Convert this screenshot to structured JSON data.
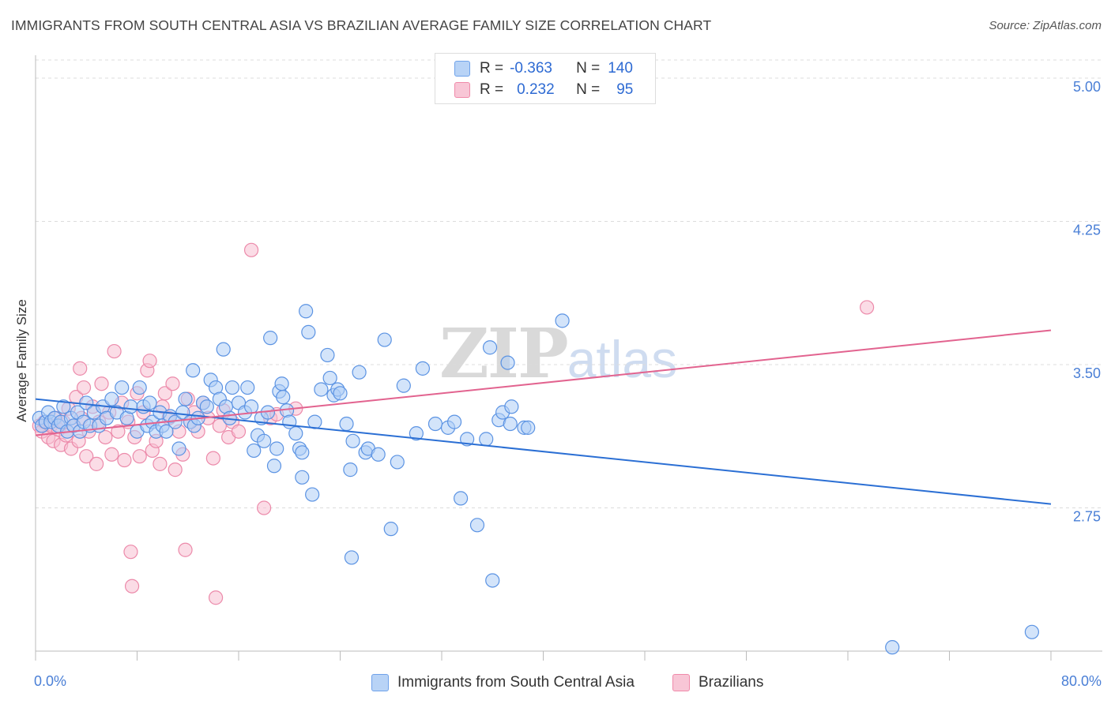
{
  "header": {
    "title": "IMMIGRANTS FROM SOUTH CENTRAL ASIA VS BRAZILIAN AVERAGE FAMILY SIZE CORRELATION CHART",
    "source": "Source: ZipAtlas.com"
  },
  "watermark": {
    "zip": "ZIP",
    "atlas": "atlas"
  },
  "legend_stats": [
    {
      "r_label": "R =",
      "r_value": "-0.363",
      "n_label": "N =",
      "n_value": "140",
      "color": "#6fa2ea"
    },
    {
      "r_label": "R =",
      "r_value": "0.232",
      "n_label": "N =",
      "n_value": "95",
      "color": "#f08aaa"
    }
  ],
  "colors": {
    "blue_fill": "#aecdf5",
    "blue_stroke": "#5b93e3",
    "blue_line": "#2b6fd4",
    "pink_fill": "#f7c0d2",
    "pink_stroke": "#ec8aaa",
    "pink_line": "#e2638f",
    "tick_text": "#4a7fd6",
    "grid": "#dcdcdc"
  },
  "chart_data": {
    "type": "scatter",
    "title": "IMMIGRANTS FROM SOUTH CENTRAL ASIA VS BRAZILIAN AVERAGE FAMILY SIZE CORRELATION CHART",
    "xlabel": "",
    "ylabel": "Average Family Size",
    "xlim": [
      0,
      80
    ],
    "ylim": [
      2.0,
      5.12
    ],
    "x_tick_labels": [
      "0.0%",
      "80.0%"
    ],
    "y_ticks": [
      2.75,
      3.5,
      4.25,
      5.0
    ],
    "y_tick_labels": [
      "2.75",
      "3.50",
      "4.25",
      "5.00"
    ],
    "grid": true,
    "legend_position": "bottom",
    "series": [
      {
        "name": "Immigrants from South Central Asia",
        "color": "#6fa2ea",
        "trend": [
          [
            0,
            3.32
          ],
          [
            80,
            2.77
          ]
        ],
        "points": [
          [
            0.3,
            3.22
          ],
          [
            0.5,
            3.18
          ],
          [
            0.8,
            3.2
          ],
          [
            1.0,
            3.25
          ],
          [
            1.2,
            3.2
          ],
          [
            1.5,
            3.22
          ],
          [
            1.8,
            3.18
          ],
          [
            2.0,
            3.2
          ],
          [
            2.2,
            3.28
          ],
          [
            2.5,
            3.15
          ],
          [
            2.8,
            3.22
          ],
          [
            3.0,
            3.18
          ],
          [
            3.3,
            3.25
          ],
          [
            3.5,
            3.15
          ],
          [
            3.8,
            3.2
          ],
          [
            4.0,
            3.3
          ],
          [
            4.3,
            3.18
          ],
          [
            4.6,
            3.25
          ],
          [
            5.0,
            3.18
          ],
          [
            5.3,
            3.28
          ],
          [
            5.6,
            3.22
          ],
          [
            6.0,
            3.32
          ],
          [
            6.4,
            3.25
          ],
          [
            6.8,
            3.38
          ],
          [
            7.2,
            3.22
          ],
          [
            7.5,
            3.28
          ],
          [
            8.0,
            3.15
          ],
          [
            8.2,
            3.38
          ],
          [
            8.5,
            3.28
          ],
          [
            8.8,
            3.18
          ],
          [
            9.0,
            3.3
          ],
          [
            9.2,
            3.2
          ],
          [
            9.5,
            3.15
          ],
          [
            9.8,
            3.25
          ],
          [
            10.0,
            3.18
          ],
          [
            10.3,
            3.15
          ],
          [
            10.6,
            3.23
          ],
          [
            11.0,
            3.2
          ],
          [
            11.3,
            3.06
          ],
          [
            11.6,
            3.25
          ],
          [
            11.8,
            3.32
          ],
          [
            12.2,
            3.2
          ],
          [
            12.5,
            3.18
          ],
          [
            12.4,
            3.47
          ],
          [
            12.8,
            3.22
          ],
          [
            13.2,
            3.3
          ],
          [
            13.5,
            3.28
          ],
          [
            13.8,
            3.42
          ],
          [
            14.2,
            3.38
          ],
          [
            14.5,
            3.32
          ],
          [
            14.8,
            3.58
          ],
          [
            15.0,
            3.28
          ],
          [
            15.3,
            3.22
          ],
          [
            15.5,
            3.38
          ],
          [
            16.0,
            3.3
          ],
          [
            16.5,
            3.25
          ],
          [
            16.7,
            3.38
          ],
          [
            17.0,
            3.28
          ],
          [
            17.2,
            3.05
          ],
          [
            17.5,
            3.13
          ],
          [
            17.8,
            3.22
          ],
          [
            18.0,
            3.1
          ],
          [
            18.3,
            3.25
          ],
          [
            18.5,
            3.64
          ],
          [
            18.8,
            2.97
          ],
          [
            19.0,
            3.06
          ],
          [
            19.2,
            3.36
          ],
          [
            19.4,
            3.4
          ],
          [
            19.5,
            3.33
          ],
          [
            19.8,
            3.26
          ],
          [
            20.0,
            3.2
          ],
          [
            20.5,
            3.14
          ],
          [
            20.8,
            3.06
          ],
          [
            21.0,
            3.04
          ],
          [
            21.0,
            2.91
          ],
          [
            21.3,
            3.78
          ],
          [
            21.5,
            3.67
          ],
          [
            21.8,
            2.82
          ],
          [
            22.0,
            3.2
          ],
          [
            22.5,
            3.37
          ],
          [
            23.0,
            3.55
          ],
          [
            23.2,
            3.43
          ],
          [
            23.5,
            3.34
          ],
          [
            23.8,
            3.37
          ],
          [
            24.0,
            3.35
          ],
          [
            24.5,
            3.19
          ],
          [
            24.8,
            2.95
          ],
          [
            24.9,
            2.49
          ],
          [
            25.0,
            3.1
          ],
          [
            25.5,
            3.46
          ],
          [
            26.0,
            3.04
          ],
          [
            26.2,
            3.06
          ],
          [
            27.0,
            3.03
          ],
          [
            28.0,
            2.64
          ],
          [
            28.5,
            2.99
          ],
          [
            27.5,
            3.63
          ],
          [
            29.0,
            3.39
          ],
          [
            30.0,
            3.14
          ],
          [
            30.5,
            3.48
          ],
          [
            31.5,
            3.19
          ],
          [
            32.5,
            3.17
          ],
          [
            33.0,
            3.2
          ],
          [
            33.5,
            2.8
          ],
          [
            34.0,
            3.11
          ],
          [
            34.8,
            2.66
          ],
          [
            35.5,
            3.11
          ],
          [
            35.8,
            3.59
          ],
          [
            36.0,
            2.37
          ],
          [
            36.5,
            3.21
          ],
          [
            36.8,
            3.25
          ],
          [
            37.2,
            3.51
          ],
          [
            37.4,
            3.19
          ],
          [
            37.5,
            3.28
          ],
          [
            38.5,
            3.17
          ],
          [
            38.8,
            3.17
          ],
          [
            41.5,
            3.73
          ],
          [
            67.5,
            2.02
          ],
          [
            78.5,
            2.1
          ]
        ]
      },
      {
        "name": "Brazilians",
        "color": "#f08aaa",
        "trend": [
          [
            0,
            3.13
          ],
          [
            80,
            3.68
          ]
        ],
        "points": [
          [
            0.3,
            3.18
          ],
          [
            0.5,
            3.15
          ],
          [
            0.7,
            3.2
          ],
          [
            1.0,
            3.12
          ],
          [
            1.2,
            3.18
          ],
          [
            1.4,
            3.1
          ],
          [
            1.6,
            3.22
          ],
          [
            1.8,
            3.16
          ],
          [
            2.0,
            3.08
          ],
          [
            2.2,
            3.2
          ],
          [
            2.4,
            3.13
          ],
          [
            2.6,
            3.27
          ],
          [
            2.8,
            3.06
          ],
          [
            3.0,
            3.18
          ],
          [
            3.2,
            3.33
          ],
          [
            3.4,
            3.1
          ],
          [
            3.5,
            3.48
          ],
          [
            3.6,
            3.22
          ],
          [
            3.8,
            3.38
          ],
          [
            4.0,
            3.02
          ],
          [
            4.2,
            3.15
          ],
          [
            4.5,
            3.28
          ],
          [
            4.8,
            2.98
          ],
          [
            5.0,
            3.2
          ],
          [
            5.2,
            3.4
          ],
          [
            5.5,
            3.12
          ],
          [
            5.8,
            3.25
          ],
          [
            6.0,
            3.03
          ],
          [
            6.2,
            3.57
          ],
          [
            6.5,
            3.15
          ],
          [
            6.8,
            3.3
          ],
          [
            7.0,
            3.0
          ],
          [
            7.3,
            3.2
          ],
          [
            7.5,
            2.52
          ],
          [
            7.6,
            2.34
          ],
          [
            7.8,
            3.12
          ],
          [
            8.0,
            3.35
          ],
          [
            8.2,
            3.02
          ],
          [
            8.5,
            3.25
          ],
          [
            8.8,
            3.47
          ],
          [
            9.0,
            3.52
          ],
          [
            9.2,
            3.05
          ],
          [
            9.5,
            3.1
          ],
          [
            9.8,
            2.98
          ],
          [
            10.0,
            3.28
          ],
          [
            10.2,
            3.35
          ],
          [
            10.5,
            3.22
          ],
          [
            10.8,
            3.4
          ],
          [
            11.0,
            2.95
          ],
          [
            11.3,
            3.15
          ],
          [
            11.6,
            3.03
          ],
          [
            11.8,
            2.53
          ],
          [
            12.0,
            3.32
          ],
          [
            12.2,
            3.2
          ],
          [
            12.5,
            3.25
          ],
          [
            12.8,
            3.15
          ],
          [
            13.2,
            3.3
          ],
          [
            13.6,
            3.22
          ],
          [
            14.0,
            3.01
          ],
          [
            14.2,
            2.28
          ],
          [
            14.5,
            3.18
          ],
          [
            14.8,
            3.26
          ],
          [
            15.2,
            3.12
          ],
          [
            15.5,
            3.2
          ],
          [
            16.0,
            3.15
          ],
          [
            17.0,
            4.1
          ],
          [
            18.0,
            2.75
          ],
          [
            18.5,
            3.22
          ],
          [
            19.0,
            3.24
          ],
          [
            20.5,
            3.27
          ],
          [
            65.5,
            3.8
          ]
        ]
      }
    ]
  }
}
